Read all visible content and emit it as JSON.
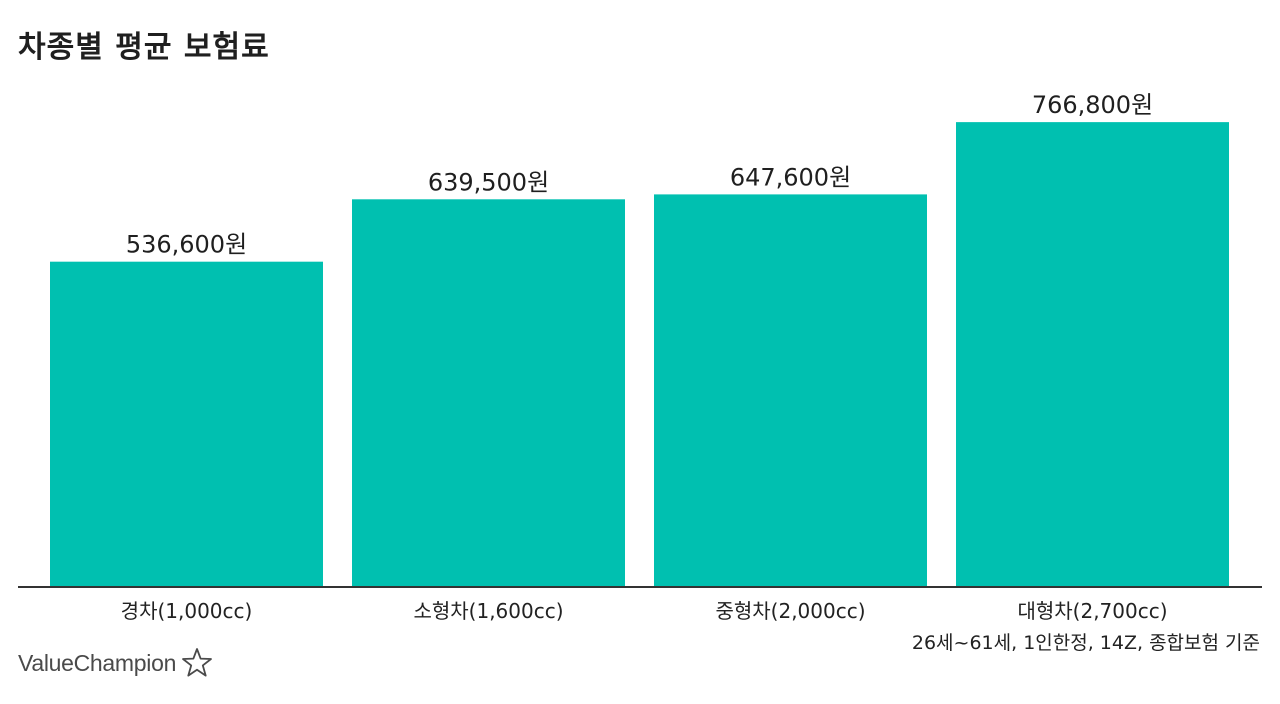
{
  "title": "차종별 평균 보험료",
  "chart_data": {
    "type": "bar",
    "title": "차종별 평균 보험료",
    "categories": [
      "경차(1,000cc)",
      "소형차(1,600cc)",
      "중형차(2,000cc)",
      "대형차(2,700cc)"
    ],
    "values": [
      536600,
      639500,
      647600,
      766800
    ],
    "value_labels": [
      "536,600원",
      "639,500원",
      "647,600원",
      "766,800원"
    ],
    "ylim": [
      0,
      800000
    ],
    "grid": false,
    "legend": "none",
    "bar_color": "#00c0b0",
    "axis_color": "#333333"
  },
  "footnote": "26세~61세, 1인한정, 14Z, 종합보험 기준",
  "brand": {
    "logo_text": "ValueChampion",
    "icon": "star-outline-icon"
  }
}
